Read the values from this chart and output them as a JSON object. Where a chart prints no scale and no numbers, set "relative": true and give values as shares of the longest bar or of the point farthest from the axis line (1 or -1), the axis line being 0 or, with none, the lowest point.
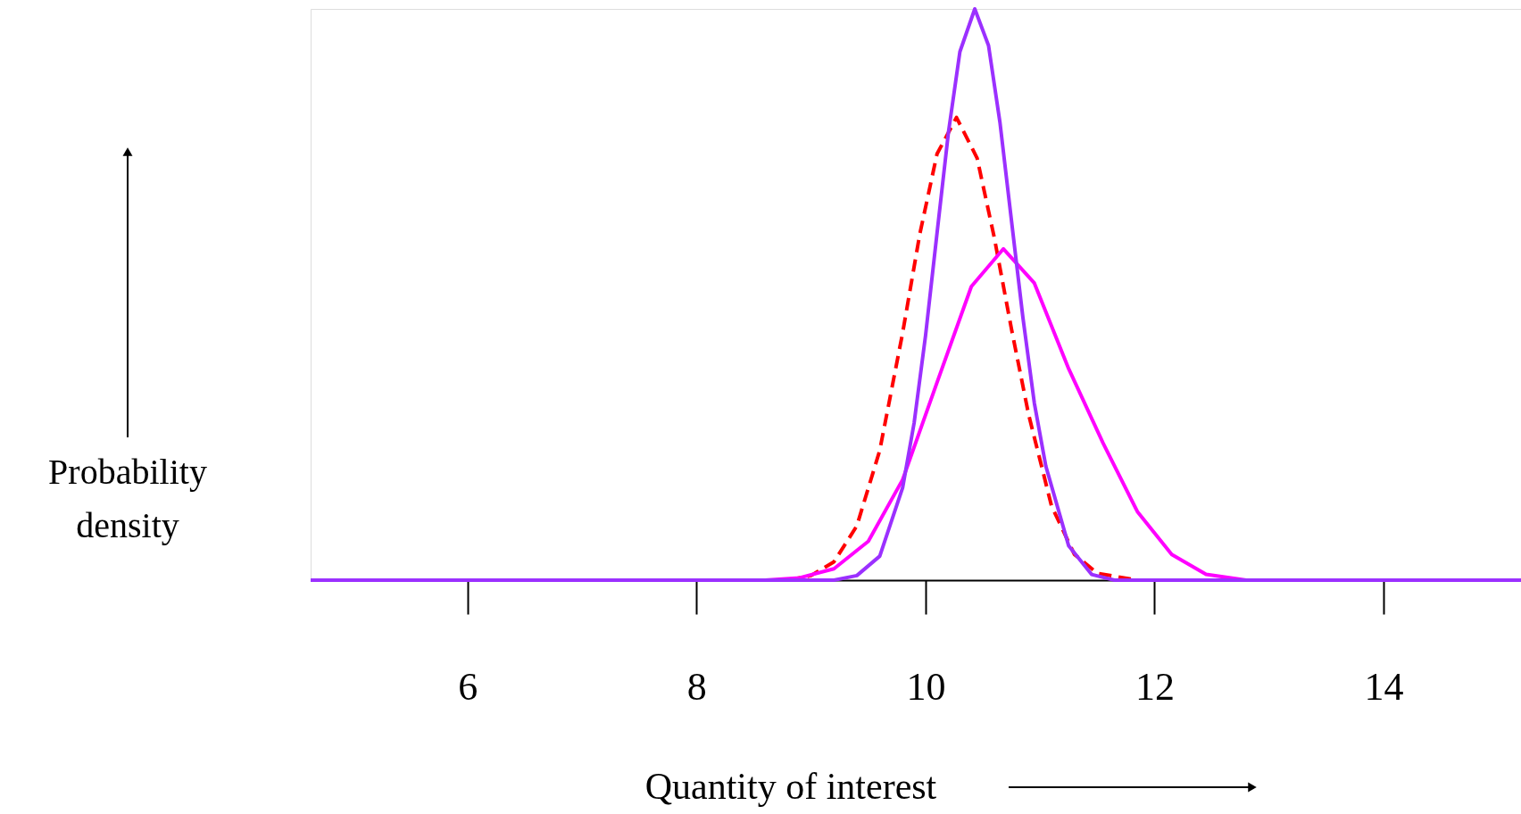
{
  "chart_data": {
    "type": "line",
    "relative": true,
    "xlabel": "Quantity of interest",
    "ylabel": "Probability density",
    "xlim": [
      4.63,
      15.2
    ],
    "xticks": [
      6,
      8,
      10,
      12,
      14
    ],
    "grid": false,
    "tick_labels": "x",
    "marker": "none",
    "series": [
      {
        "color": "#ff0000",
        "line_style": "dashed",
        "x": [
          8.8,
          9.0,
          9.2,
          9.4,
          9.6,
          9.8,
          9.95,
          10.1,
          10.27,
          10.45,
          10.6,
          10.75,
          10.9,
          11.1,
          11.3,
          11.5,
          11.85
        ],
        "values": [
          0,
          0.008,
          0.032,
          0.095,
          0.227,
          0.433,
          0.606,
          0.746,
          0.81,
          0.739,
          0.6,
          0.44,
          0.29,
          0.13,
          0.045,
          0.012,
          0
        ]
      },
      {
        "color": "#ff00ff",
        "line_style": "solid",
        "x": [
          4.63,
          8.6,
          8.9,
          9.2,
          9.5,
          9.8,
          10.1,
          10.4,
          10.68,
          10.95,
          11.25,
          11.55,
          11.85,
          12.15,
          12.45,
          12.8,
          15.2
        ],
        "values": [
          0,
          0,
          0.004,
          0.02,
          0.068,
          0.176,
          0.346,
          0.514,
          0.58,
          0.52,
          0.37,
          0.24,
          0.12,
          0.045,
          0.01,
          0,
          0
        ]
      },
      {
        "color": "#9b30ff",
        "line_style": "solid",
        "x": [
          4.63,
          9.2,
          9.4,
          9.6,
          9.8,
          9.9,
          10.0,
          10.1,
          10.2,
          10.3,
          10.43,
          10.55,
          10.65,
          10.75,
          10.85,
          10.95,
          11.05,
          11.25,
          11.45,
          11.65,
          15.2
        ],
        "values": [
          0,
          0,
          0.008,
          0.042,
          0.162,
          0.275,
          0.428,
          0.607,
          0.784,
          0.925,
          1,
          0.936,
          0.801,
          0.63,
          0.46,
          0.31,
          0.2,
          0.06,
          0.01,
          0,
          0
        ]
      }
    ]
  }
}
